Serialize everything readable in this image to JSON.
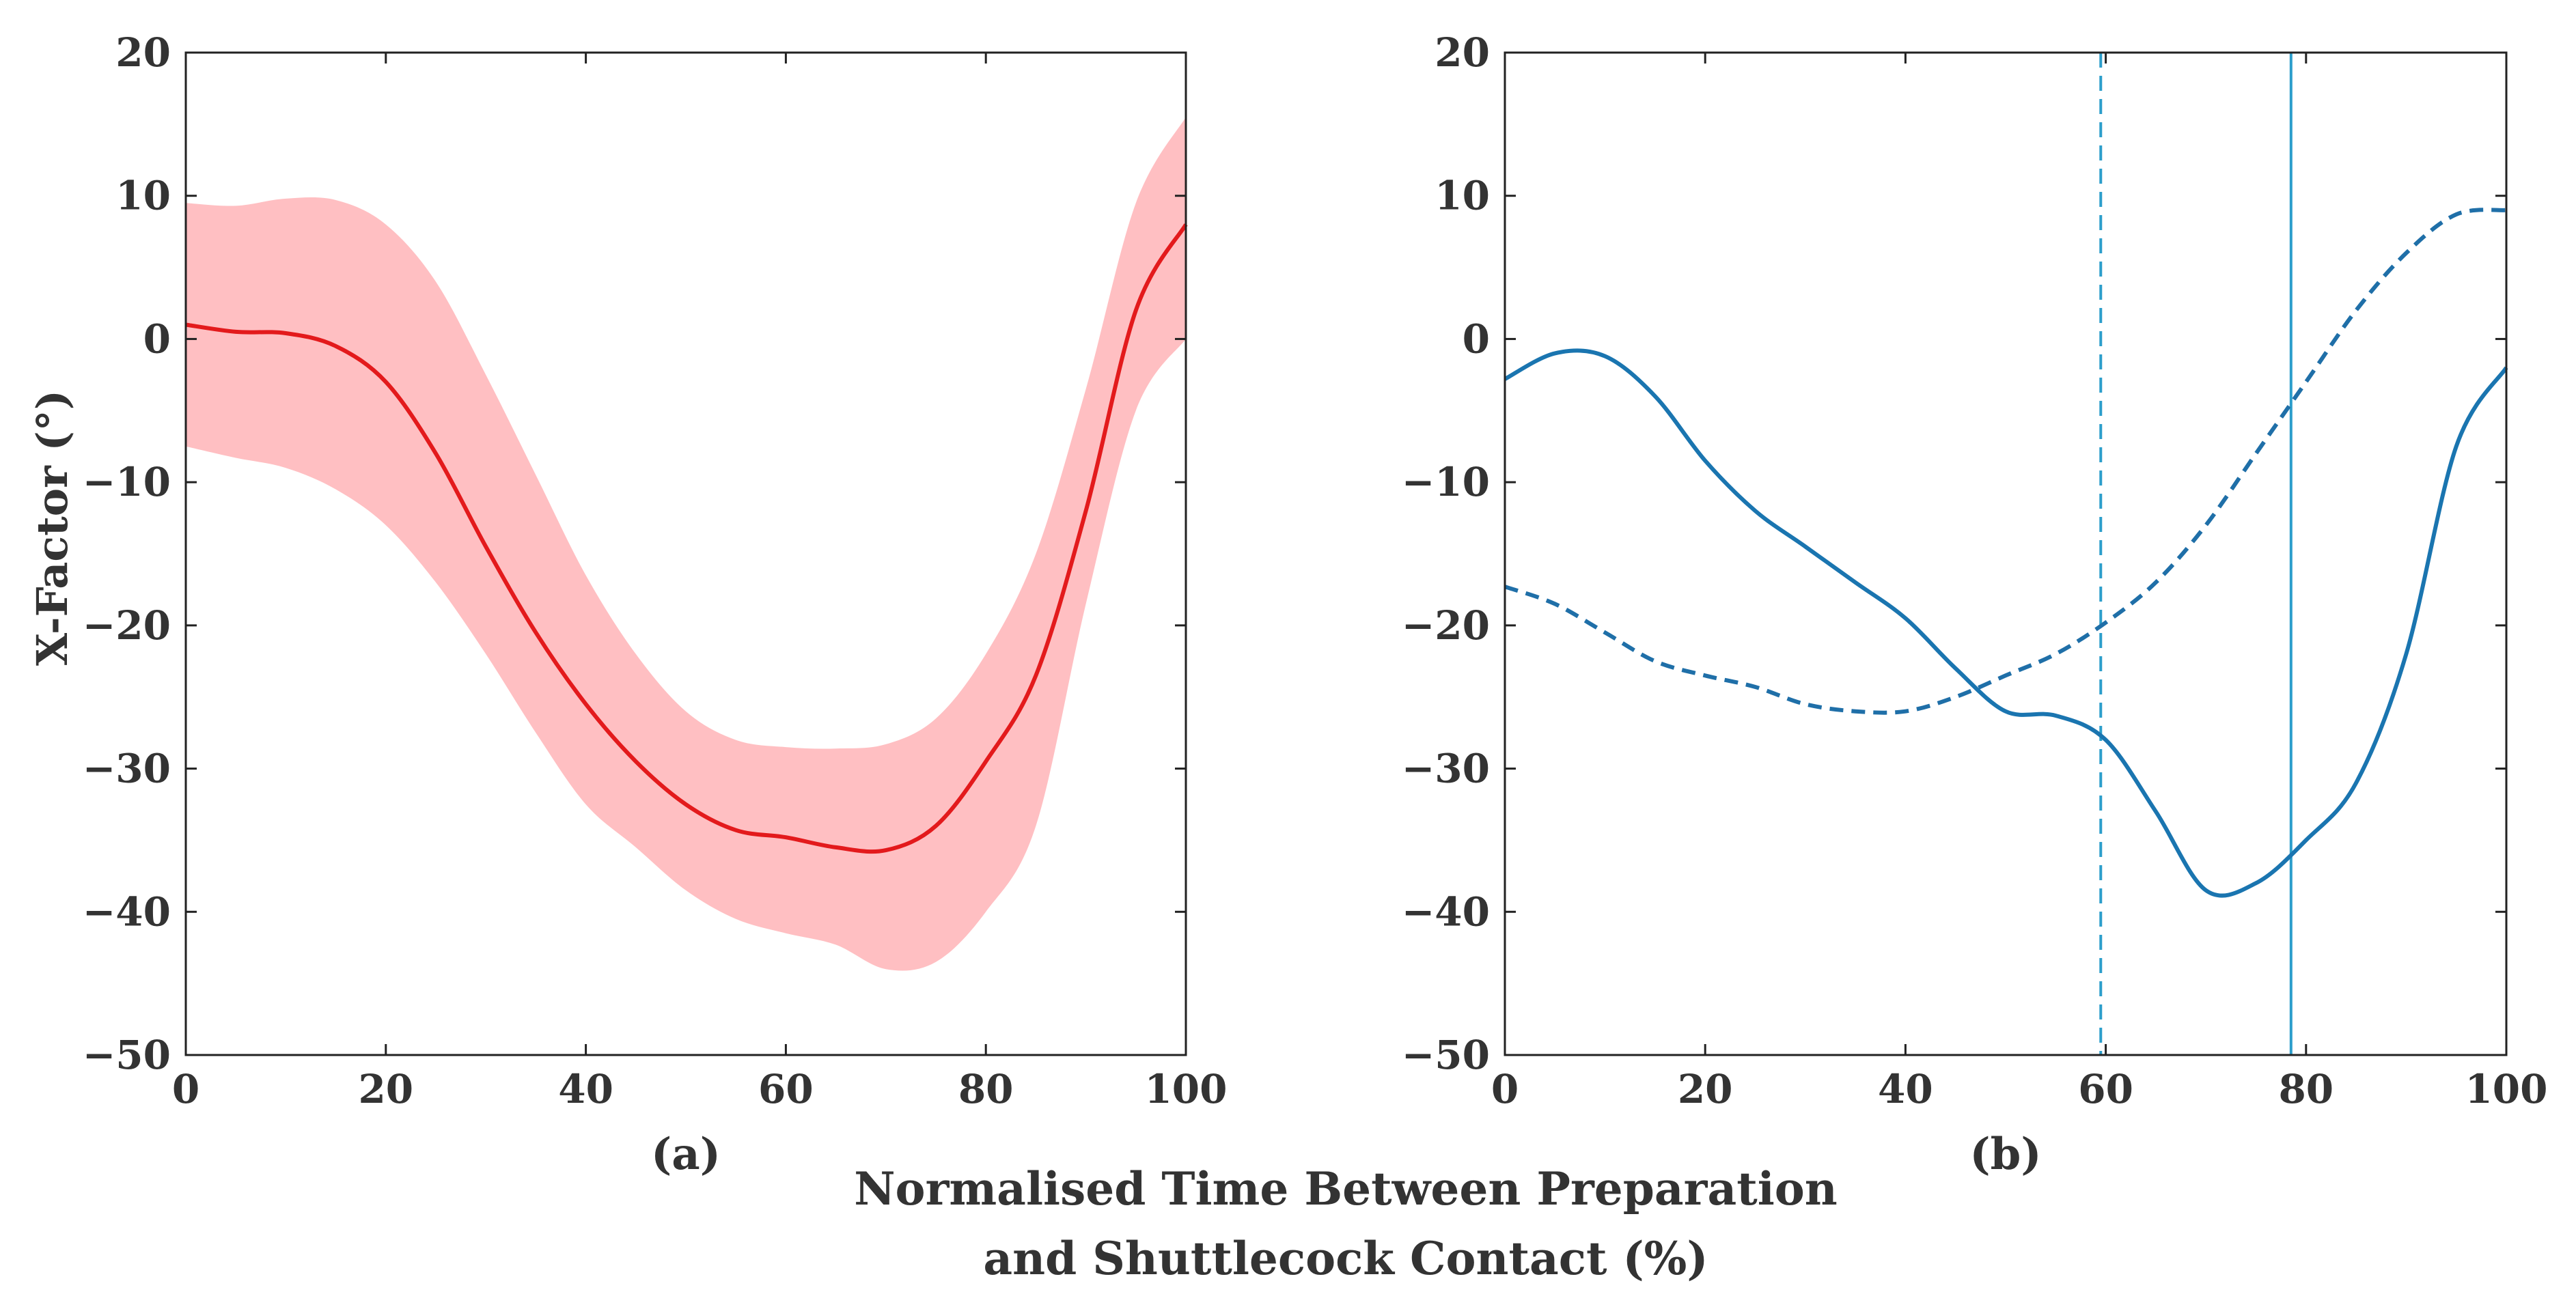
{
  "chart_data": [
    {
      "type": "line",
      "panel_label": "(a)",
      "ylabel": "X-Factor (°)",
      "xlim": [
        0,
        100
      ],
      "ylim": [
        -50,
        20
      ],
      "xticks": [
        "0",
        "20",
        "40",
        "60",
        "80",
        "100"
      ],
      "yticks": [
        "20",
        "10",
        "0",
        "−10",
        "−20",
        "−30",
        "−40",
        "−50"
      ],
      "x": [
        0,
        5,
        10,
        15,
        20,
        25,
        30,
        35,
        40,
        45,
        50,
        55,
        60,
        65,
        70,
        75,
        80,
        85,
        90,
        95,
        100
      ],
      "series": [
        {
          "style": "solid",
          "color": "#e31a1c",
          "values": [
            1,
            0.5,
            0.4,
            -0.5,
            -3,
            -8,
            -14.5,
            -20.5,
            -25.5,
            -29.5,
            -32.5,
            -34.3,
            -34.8,
            -35.5,
            -35.7,
            -34,
            -29.5,
            -23.5,
            -12,
            2,
            8
          ]
        }
      ],
      "band": {
        "color": "#ffbfc2",
        "upper": [
          9.5,
          9.3,
          9.8,
          9.7,
          8,
          4,
          -2.5,
          -9.5,
          -16.5,
          -22,
          -26,
          -28,
          -28.5,
          -28.6,
          -28.3,
          -26.5,
          -22,
          -15,
          -3.5,
          9.5,
          15.5
        ],
        "lower": [
          -7.5,
          -8.3,
          -9,
          -10.5,
          -13,
          -17,
          -22,
          -27.5,
          -32.5,
          -35.5,
          -38.5,
          -40.5,
          -41.5,
          -42.3,
          -44,
          -43.5,
          -40,
          -34,
          -18.5,
          -5,
          0
        ]
      }
    },
    {
      "type": "line",
      "panel_label": "(b)",
      "xlim": [
        0,
        100
      ],
      "ylim": [
        -50,
        20
      ],
      "xticks": [
        "0",
        "20",
        "40",
        "60",
        "80",
        "100"
      ],
      "yticks": [
        "20",
        "10",
        "0",
        "−10",
        "−20",
        "−30",
        "−40",
        "−50"
      ],
      "x": [
        0,
        5,
        10,
        15,
        20,
        25,
        30,
        35,
        40,
        45,
        50,
        55,
        60,
        65,
        70,
        75,
        80,
        85,
        90,
        95,
        100
      ],
      "series": [
        {
          "style": "solid",
          "color": "#1a75b0",
          "values": [
            -2.8,
            -1,
            -1.2,
            -4,
            -8.5,
            -12,
            -14.5,
            -17,
            -19.5,
            -23,
            -26,
            -26.3,
            -28,
            -33,
            -38.5,
            -38,
            -35,
            -31,
            -22,
            -7.5,
            -2
          ]
        },
        {
          "style": "dashed",
          "color": "#1f6fa8",
          "values": [
            -17.3,
            -18.5,
            -20.5,
            -22.5,
            -23.5,
            -24.3,
            -25.5,
            -26,
            -26,
            -25,
            -23.5,
            -22,
            -19.8,
            -17,
            -13,
            -8,
            -3,
            2,
            6,
            8.7,
            9
          ]
        }
      ],
      "vlines": [
        {
          "x": 59.5,
          "style": "dashed",
          "color": "#2c9ecb"
        },
        {
          "x": 78.5,
          "style": "solid",
          "color": "#2c9ecb"
        }
      ]
    }
  ],
  "shared_xlabel": [
    "Normalised Time Between Preparation",
    "and Shuttlecock Contact (%)"
  ]
}
